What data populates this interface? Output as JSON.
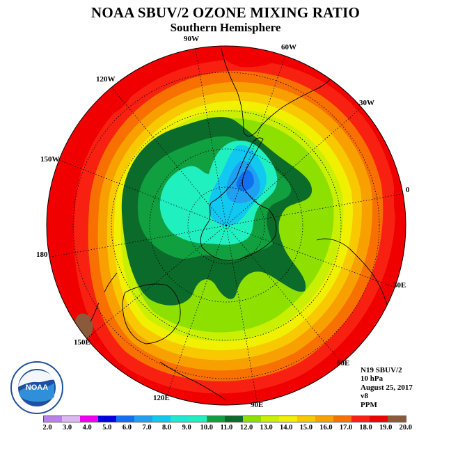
{
  "title": "NOAA SBUV/2 OZONE MIXING RATIO",
  "subtitle": "Southern Hemisphere",
  "longitude_labels": [
    "90W",
    "60W",
    "30W",
    "0",
    "30E",
    "60E",
    "90E",
    "120E",
    "150E",
    "180",
    "150W",
    "120W"
  ],
  "info_lines": [
    "N19 SBUV/2",
    "10 hPa",
    "August 25, 2017",
    "v8",
    "PPM"
  ],
  "logo_text": "NOAA",
  "colorbar": {
    "ticks": [
      "2.0",
      "3.0",
      "4.0",
      "5.0",
      "6.0",
      "7.0",
      "8.0",
      "9.0",
      "10.0",
      "11.0",
      "12.0",
      "13.0",
      "14.0",
      "15.0",
      "16.0",
      "17.0",
      "18.0",
      "19.0",
      "20.0"
    ],
    "colors": [
      "#b980e8",
      "#dcb8f0",
      "#f000f0",
      "#0000e0",
      "#1070f0",
      "#20a0f0",
      "#10c8f0",
      "#20e8d0",
      "#20f0c0",
      "#10a040",
      "#0b6b2a",
      "#8ee000",
      "#c8f000",
      "#f0f000",
      "#f8c800",
      "#f8a000",
      "#f87000",
      "#f82010",
      "#f00000",
      "#8a5a3a"
    ]
  },
  "chart_data": {
    "type": "heatmap",
    "projection": "south-polar-stereographic",
    "variable": "Ozone mixing ratio",
    "units": "PPM",
    "level": "10 hPa",
    "date": "August 25, 2017",
    "instrument": "N19 SBUV/2",
    "version": "v8",
    "range": [
      2.0,
      20.0
    ],
    "contour_interval": 1.0,
    "min_region": "7-8 PPM near South America / Antarctic Peninsula sector",
    "max_region": "18-20 PPM at outer edge (lower latitudes)"
  }
}
